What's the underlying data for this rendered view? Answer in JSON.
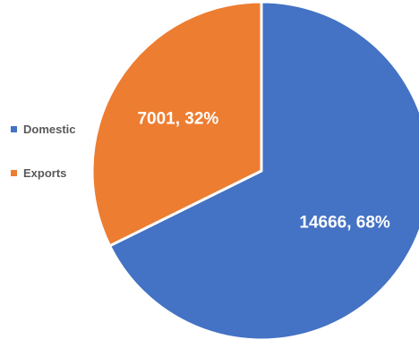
{
  "chart_data": {
    "type": "pie",
    "title": "",
    "slices": [
      {
        "label": "Domestic",
        "value": 14666,
        "percent": 68,
        "color": "#4472C4",
        "data_label": "14666, 68%"
      },
      {
        "label": "Exports",
        "value": 7001,
        "percent": 32,
        "color": "#ED7D31",
        "data_label": "7001, 32%"
      }
    ],
    "legend": {
      "position": "left",
      "entries": [
        "Domestic",
        "Exports"
      ]
    },
    "start_angle_deg": 0,
    "direction": "clockwise",
    "slice_border_color": "#FFFFFF",
    "label_color": "#FFFFFF"
  }
}
